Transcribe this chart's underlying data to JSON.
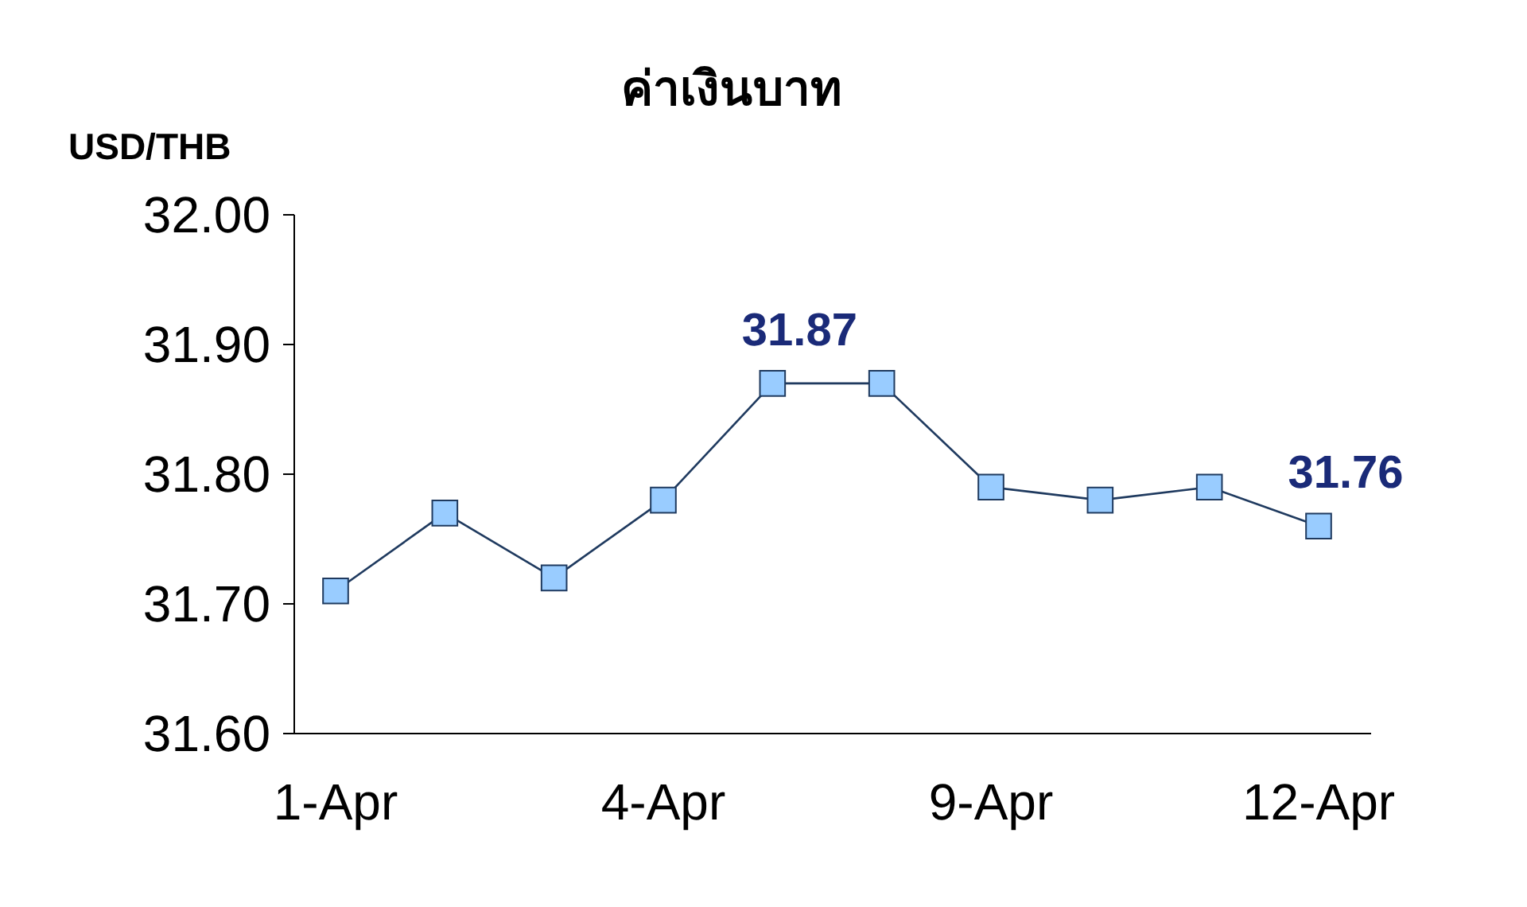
{
  "chart_data": {
    "type": "line",
    "title": "ค่าเงินบาท",
    "ylabel": "USD/THB",
    "categories": [
      "1-Apr",
      null,
      null,
      "4-Apr",
      null,
      null,
      "9-Apr",
      null,
      null,
      "12-Apr"
    ],
    "series": [
      {
        "color": "#1f3a5f",
        "values": [
          31.71,
          31.77,
          31.72,
          31.78,
          31.87,
          31.87,
          31.79,
          31.78,
          31.79,
          31.76
        ],
        "value_labels": [
          null,
          null,
          null,
          null,
          "31.87",
          null,
          null,
          null,
          null,
          "31.76"
        ]
      }
    ],
    "ylim": [
      31.6,
      32.0
    ],
    "yticks": [
      {
        "value": 31.6,
        "label": "31.60"
      },
      {
        "value": 31.7,
        "label": "31.70"
      },
      {
        "value": 31.8,
        "label": "31.80"
      },
      {
        "value": 31.9,
        "label": "31.90"
      },
      {
        "value": 32.0,
        "label": "32.00"
      }
    ],
    "marker": "square",
    "grid": false
  }
}
